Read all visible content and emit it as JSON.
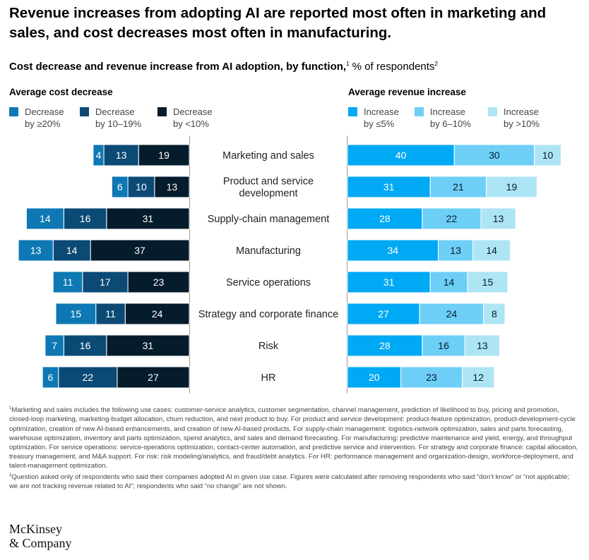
{
  "headline": "Revenue increases from adopting AI are reported most often in marketing and sales, and cost decreases most often in manufacturing.",
  "subtitle": {
    "bold": "Cost decrease and revenue increase from AI adoption, by function,",
    "sup1": "1",
    "rest": " % of respondents",
    "sup2": "2"
  },
  "colors": {
    "cost_dark": "#051c2c",
    "cost_mid": "#0b4a75",
    "cost_light": "#0e78b4",
    "rev_dark": "#00a9f4",
    "rev_mid": "#6ecff6",
    "rev_light": "#aee5f5"
  },
  "chart_data": [
    {
      "type": "bar",
      "orientation": "horizontal",
      "stacked": true,
      "direction": "leftward",
      "title": "Average cost decrease",
      "categories": [
        "Marketing and sales",
        "Product and service development",
        "Supply-chain management",
        "Manufacturing",
        "Service operations",
        "Strategy and corporate finance",
        "Risk",
        "HR"
      ],
      "series": [
        {
          "name": "Decrease by ≥20%",
          "color": "#0e78b4",
          "values": [
            4,
            6,
            14,
            13,
            11,
            15,
            7,
            6
          ]
        },
        {
          "name": "Decrease by 10–19%",
          "color": "#0b4a75",
          "values": [
            13,
            10,
            16,
            14,
            17,
            11,
            16,
            22
          ]
        },
        {
          "name": "Decrease by <10%",
          "color": "#051c2c",
          "values": [
            19,
            13,
            31,
            37,
            23,
            24,
            31,
            27
          ]
        }
      ],
      "legend_position": "top-left",
      "grid": false
    },
    {
      "type": "bar",
      "orientation": "horizontal",
      "stacked": true,
      "direction": "rightward",
      "title": "Average revenue increase",
      "categories": [
        "Marketing and sales",
        "Product and service development",
        "Supply-chain management",
        "Manufacturing",
        "Service operations",
        "Strategy and corporate finance",
        "Risk",
        "HR"
      ],
      "series": [
        {
          "name": "Increase by ≤5%",
          "color": "#00a9f4",
          "values": [
            40,
            31,
            28,
            34,
            31,
            27,
            28,
            20
          ]
        },
        {
          "name": "Increase by 6–10%",
          "color": "#6ecff6",
          "values": [
            30,
            21,
            22,
            13,
            14,
            24,
            16,
            23
          ]
        },
        {
          "name": "Increase by >10%",
          "color": "#aee5f5",
          "values": [
            10,
            19,
            13,
            14,
            15,
            8,
            13,
            12
          ]
        }
      ],
      "legend_position": "top-right",
      "grid": false
    }
  ],
  "category_labels": [
    [
      "Marketing and sales"
    ],
    [
      "Product and service",
      "development"
    ],
    [
      "Supply-chain management"
    ],
    [
      "Manufacturing"
    ],
    [
      "Service operations"
    ],
    [
      "Strategy and corporate finance"
    ],
    [
      "Risk"
    ],
    [
      "HR"
    ]
  ],
  "legend": {
    "cost": [
      {
        "line1": "Decrease",
        "line2": "by ≥20%"
      },
      {
        "line1": "Decrease",
        "line2": "by 10–19%"
      },
      {
        "line1": "Decrease",
        "line2": "by <10%"
      }
    ],
    "revenue": [
      {
        "line1": "Increase",
        "line2": "by ≤5%"
      },
      {
        "line1": "Increase",
        "line2": "by 6–10%"
      },
      {
        "line1": "Increase",
        "line2": "by >10%"
      }
    ]
  },
  "footnotes": {
    "note1_marker": "1",
    "note1": "Marketing and sales includes the following use cases: customer-service analytics, customer segmentation, channel management, prediction of likelihood to buy, pricing and promotion, closed-loop marketing, marketing-budget allocation, churn reduction, and next product to buy. For product and service development: product-feature optimization, product-development-cycle optimization, creation of new AI-based enhancements, and creation of new AI-based products. For supply-chain management: logistics-network optimization, sales and parts forecasting, warehouse optimization, inventory and parts optimization, spend analytics, and sales and demand forecasting. For manufacturing: predictive maintenance and yield, energy, and throughput optimization. For service operations: service-operations optimization, contact-center automation, and predictive service and intervention. For strategy and corporate finance: capital allocation, treasury management, and M&A support. For risk: risk modeling/analytics, and fraud/debt analytics. For HR: performance management and organization-design, workforce-deployment, and talent-management optimization.",
    "note2_marker": "2",
    "note2": "Question asked only of respondents who said their companies adopted AI in given use case. Figures were calculated after removing respondents who said “don’t know” or “not applicable; we are not tracking revenue related to AI”; respondents who said “no change” are not shown."
  },
  "logo": {
    "line1": "McKinsey",
    "line2": "& Company"
  }
}
